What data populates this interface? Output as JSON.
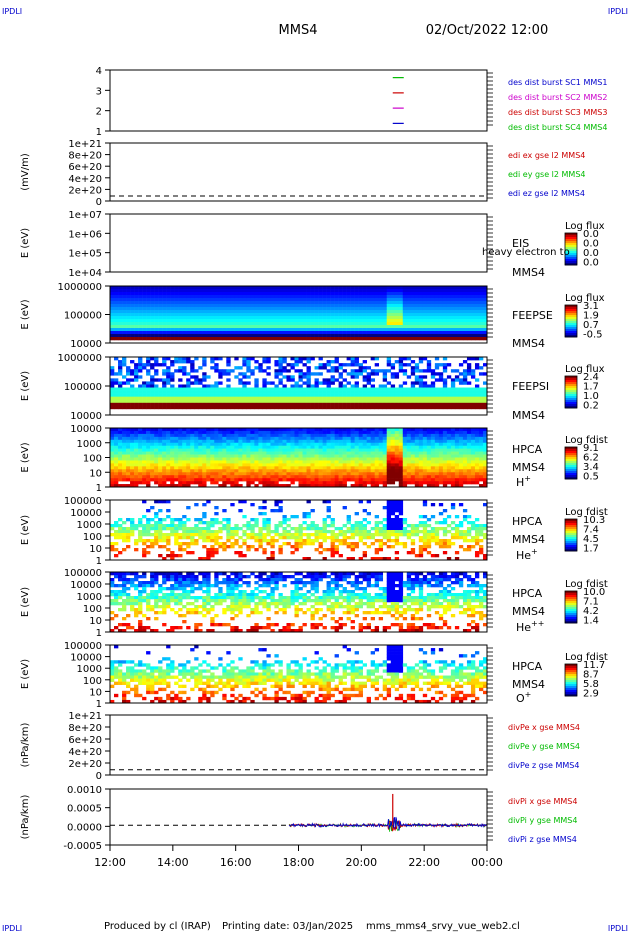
{
  "header": {
    "corner_tl": "IPDLI",
    "corner_tr": "IPDLI",
    "corner_bl": "IPDLI",
    "corner_br": "IPDLI",
    "spacecraft": "MMS4",
    "datetime": "02/Oct/2022 12:00"
  },
  "footer": {
    "producer": "Produced by cl (IRAP)",
    "printing": "Printing date: 03/Jan/2025",
    "filename": "mms_mms4_srvy_vue_web2.cl"
  },
  "colors": {
    "blue": "#0000cc",
    "magenta": "#cc00cc",
    "red": "#cc0000",
    "green": "#00bb00",
    "black": "#000000",
    "darkred": "#990000"
  },
  "chart_data": [
    {
      "id": "p1",
      "type": "line",
      "ticks": [
        "1",
        "2",
        "3",
        "4"
      ],
      "ylim": [
        0.5,
        4.5
      ],
      "legend": [
        {
          "text": "des dist burst SC1 MMS1",
          "color": "#0000cc"
        },
        {
          "text": "des dist burst SC2 MMS2",
          "color": "#cc00cc"
        },
        {
          "text": "des dist burst SC3 MMS3",
          "color": "#cc0000"
        },
        {
          "text": "des dist burst SC4 MMS4",
          "color": "#00bb00"
        }
      ],
      "series": [
        {
          "values": [
            [
              21.0,
              4
            ],
            [
              21.35,
              4
            ]
          ],
          "color": "#00bb00"
        },
        {
          "values": [
            [
              21.0,
              3
            ],
            [
              21.35,
              3
            ]
          ],
          "color": "#cc0000"
        },
        {
          "values": [
            [
              21.0,
              2
            ],
            [
              21.35,
              2
            ]
          ],
          "color": "#cc00cc"
        },
        {
          "values": [
            [
              21.0,
              1
            ],
            [
              21.35,
              1
            ]
          ],
          "color": "#0000cc"
        }
      ]
    },
    {
      "id": "p2",
      "type": "line",
      "ylabel": "(mV/m)",
      "ticks": [
        "0",
        "2e+20",
        "4e+20",
        "6e+20",
        "8e+20",
        "1e+21"
      ],
      "ylim": [
        -0.1,
        1.05
      ],
      "legend": [
        {
          "text": "edi ex gse l2 MMS4",
          "color": "#cc0000"
        },
        {
          "text": "edi ey gse l2 MMS4",
          "color": "#00bb00"
        },
        {
          "text": "edi ez gse l2 MMS4",
          "color": "#0000cc"
        }
      ]
    },
    {
      "id": "p3",
      "type": "heatmap",
      "ylabel": "E (eV)",
      "ticks": [
        "1e+04",
        "1e+05",
        "1e+06",
        "1e+07"
      ],
      "instrument": [
        "EIS",
        "MMS4"
      ],
      "cb_title": "Log flux",
      "cb_values": [
        "0.0",
        "0.0",
        "0.0",
        "0.0"
      ],
      "overlay": "heavy electron to"
    },
    {
      "id": "p4",
      "type": "heatmap",
      "ylabel": "E (eV)",
      "ticks": [
        "10000",
        "100000",
        "1000000"
      ],
      "instrument": [
        "FEEPSE",
        "MMS4"
      ],
      "cb_title": "Log flux",
      "cb_values": [
        "3.1",
        "1.9",
        "0.7",
        "-0.5"
      ]
    },
    {
      "id": "p5",
      "type": "heatmap",
      "ylabel": "E (eV)",
      "ticks": [
        "10000",
        "100000",
        "1000000"
      ],
      "instrument": [
        "FEEPSI",
        "MMS4"
      ],
      "cb_title": "Log flux",
      "cb_values": [
        "2.4",
        "1.7",
        "1.0",
        "0.2"
      ]
    },
    {
      "id": "p6",
      "type": "heatmap",
      "ylabel": "E (eV)",
      "ticks": [
        "1",
        "10",
        "100",
        "1000",
        "10000"
      ],
      "instrument": [
        "HPCA",
        "MMS4"
      ],
      "species": "H",
      "charge": "+",
      "cb_title": "Log fdist",
      "cb_values": [
        "9.1",
        "6.2",
        "3.4",
        "0.5"
      ]
    },
    {
      "id": "p7",
      "type": "heatmap",
      "ylabel": "E (eV)",
      "ticks": [
        "1",
        "10",
        "100",
        "1000",
        "10000",
        "100000"
      ],
      "instrument": [
        "HPCA",
        "MMS4"
      ],
      "species": "He",
      "charge": "+",
      "cb_title": "Log fdist",
      "cb_values": [
        "10.3",
        "7.4",
        "4.5",
        "1.7"
      ]
    },
    {
      "id": "p8",
      "type": "heatmap",
      "ylabel": "E (eV)",
      "ticks": [
        "1",
        "10",
        "100",
        "1000",
        "10000",
        "100000"
      ],
      "instrument": [
        "HPCA",
        "MMS4"
      ],
      "species": "He",
      "charge": "++",
      "cb_title": "Log fdist",
      "cb_values": [
        "10.0",
        "7.1",
        "4.2",
        "1.4"
      ]
    },
    {
      "id": "p9",
      "type": "heatmap",
      "ylabel": "E (eV)",
      "ticks": [
        "1",
        "10",
        "100",
        "1000",
        "10000",
        "100000"
      ],
      "instrument": [
        "HPCA",
        "MMS4"
      ],
      "species": "O",
      "charge": "+",
      "cb_title": "Log fdist",
      "cb_values": [
        "11.7",
        "8.7",
        "5.8",
        "2.9"
      ]
    },
    {
      "id": "p10",
      "type": "line",
      "ylabel": "(nPa/km)",
      "ticks": [
        "0",
        "2e+20",
        "4e+20",
        "6e+20",
        "8e+20",
        "1e+21"
      ],
      "ylim": [
        -0.1,
        1.05
      ],
      "legend": [
        {
          "text": "divPe x gse MMS4",
          "color": "#cc0000"
        },
        {
          "text": "divPe y gse MMS4",
          "color": "#00bb00"
        },
        {
          "text": "divPe z gse MMS4",
          "color": "#0000cc"
        }
      ]
    },
    {
      "id": "p11",
      "type": "line",
      "ylabel": "(nPa/km)",
      "ticks": [
        "-0.0005",
        "0.0000",
        "0.0005",
        "0.0010"
      ],
      "ylim": [
        -0.0006,
        0.0011
      ],
      "legend": [
        {
          "text": "divPi x gse MMS4",
          "color": "#cc0000"
        },
        {
          "text": "divPi y gse MMS4",
          "color": "#00bb00"
        },
        {
          "text": "divPi z gse MMS4",
          "color": "#0000cc"
        }
      ],
      "spike": {
        "x": 21.0,
        "y": 0.00095
      }
    }
  ],
  "xaxis": {
    "ticks": [
      "12:00",
      "14:00",
      "16:00",
      "18:00",
      "20:00",
      "22:00",
      "00:00"
    ],
    "range": [
      12,
      24
    ]
  }
}
